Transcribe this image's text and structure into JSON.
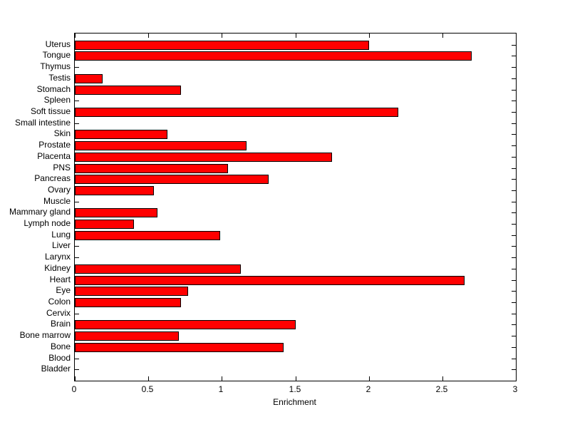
{
  "chart_data": {
    "type": "bar",
    "orientation": "horizontal",
    "title": "",
    "xlabel": "Enrichment",
    "ylabel": "",
    "xlim": [
      0,
      3
    ],
    "x_ticks": [
      0,
      0.5,
      1,
      1.5,
      2,
      2.5,
      3
    ],
    "x_tick_labels": [
      "0",
      "0.5",
      "1",
      "1.5",
      "2",
      "2.5",
      "3"
    ],
    "grid": false,
    "legend": false,
    "bar_color": "#ff0000",
    "bar_edge_color": "#000000",
    "background_color": "#ffffff",
    "categories": [
      "Uterus",
      "Tongue",
      "Thymus",
      "Testis",
      "Stomach",
      "Spleen",
      "Soft tissue",
      "Small intestine",
      "Skin",
      "Prostate",
      "Placenta",
      "PNS",
      "Pancreas",
      "Ovary",
      "Muscle",
      "Mammary gland",
      "Lymph node",
      "Lung",
      "Liver",
      "Larynx",
      "Kidney",
      "Heart",
      "Eye",
      "Colon",
      "Cervix",
      "Brain",
      "Bone marrow",
      "Bone",
      "Blood",
      "Bladder"
    ],
    "values": [
      2.0,
      2.7,
      0,
      0.19,
      0.72,
      0,
      2.2,
      0,
      0.63,
      1.17,
      1.75,
      1.04,
      1.32,
      0.54,
      0,
      0.56,
      0.4,
      0.99,
      0,
      0,
      1.13,
      2.65,
      0.77,
      0.72,
      0,
      1.5,
      0.71,
      1.42,
      0,
      0
    ]
  }
}
